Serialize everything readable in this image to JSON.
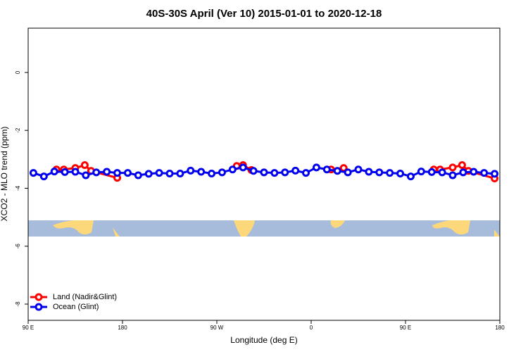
{
  "chart_data": {
    "type": "line",
    "title": "40S-30S April (Ver 10)   2015-01-01 to 2020-12-18",
    "x_label": "Longitude (deg E)",
    "y_label": "XCO2 - MLO trend (ppm)",
    "xlim": [
      90,
      540
    ],
    "ylim": [
      -8.56,
      1.53
    ],
    "xticks": [
      {
        "value": 90,
        "label": "90 E"
      },
      180,
      {
        "value": 270,
        "label": "90 W"
      },
      {
        "value": 360,
        "label": "0"
      },
      {
        "value": 450,
        "label": "90 E"
      },
      {
        "value": 540,
        "label": "180"
      }
    ],
    "yticks": [
      0,
      -2,
      -4,
      -6,
      -8
    ],
    "legend": "bottom-left",
    "series": [
      {
        "name": "Land (Nadir&Glint)",
        "color": "#ff0000",
        "x": [
          117,
          124,
          135,
          144,
          150,
          175,
          230,
          289,
          295,
          303,
          340,
          379,
          391,
          430,
          477,
          483,
          495,
          504,
          510,
          535
        ],
        "values": [
          -3.35,
          -3.35,
          -3.3,
          -3.2,
          -3.4,
          -3.64,
          null,
          -3.23,
          -3.2,
          -3.37,
          null,
          -3.35,
          -3.3,
          null,
          -3.35,
          -3.35,
          -3.28,
          -3.2,
          -3.4,
          -3.66
        ]
      },
      {
        "name": "Ocean (Glint)",
        "color": "#0000ee",
        "x": [
          95,
          105,
          115,
          125,
          135,
          145,
          155,
          165,
          175,
          185,
          195,
          205,
          215,
          225,
          235,
          245,
          255,
          265,
          275,
          285,
          295,
          305,
          315,
          325,
          335,
          345,
          355,
          365,
          375,
          385,
          395,
          405,
          415,
          425,
          435,
          445,
          455,
          465,
          475,
          485,
          495,
          505,
          515,
          525,
          535
        ],
        "values": [
          -3.47,
          -3.59,
          -3.42,
          -3.44,
          -3.43,
          -3.55,
          -3.45,
          -3.43,
          -3.47,
          -3.47,
          -3.55,
          -3.5,
          -3.47,
          -3.49,
          -3.49,
          -3.39,
          -3.43,
          -3.49,
          -3.45,
          -3.35,
          -3.28,
          -3.4,
          -3.45,
          -3.47,
          -3.45,
          -3.39,
          -3.47,
          -3.28,
          -3.35,
          -3.4,
          -3.45,
          -3.35,
          -3.43,
          -3.45,
          -3.47,
          -3.49,
          -3.59,
          -3.42,
          -3.44,
          -3.45,
          -3.55,
          -3.45,
          -3.43,
          -3.47,
          -3.5
        ]
      }
    ]
  }
}
